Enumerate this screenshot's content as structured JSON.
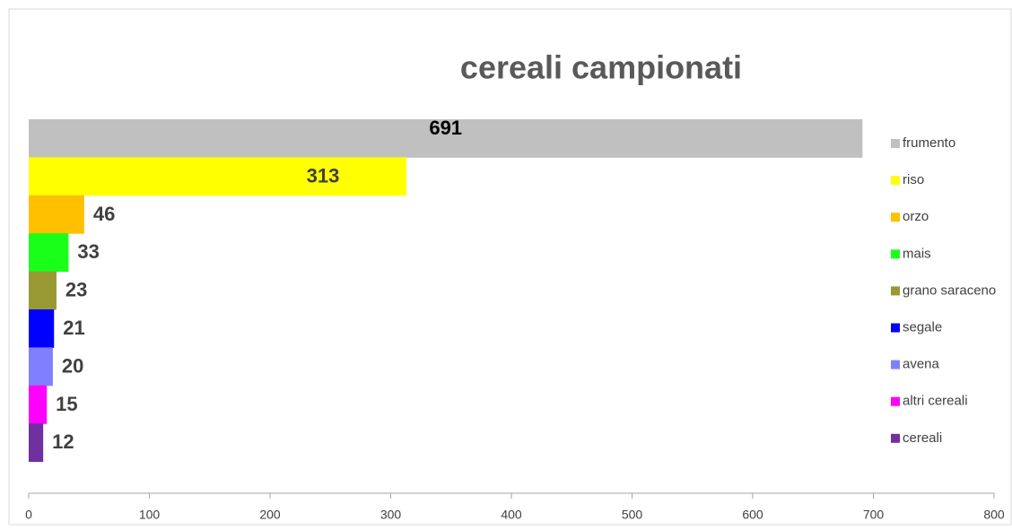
{
  "chart_data": {
    "type": "barh",
    "title": "cereali campionati",
    "series": [
      {
        "name": "frumento",
        "color": "#c0c0c0",
        "values": [
          691
        ]
      },
      {
        "name": "riso",
        "color": "#ffff00",
        "values": [
          313
        ]
      },
      {
        "name": "orzo",
        "color": "#ffc000",
        "values": [
          46
        ]
      },
      {
        "name": "mais",
        "color": "#1aff1a",
        "values": [
          33
        ]
      },
      {
        "name": "grano saraceno",
        "color": "#999933",
        "values": [
          23
        ]
      },
      {
        "name": "segale",
        "color": "#0000ff",
        "values": [
          21
        ]
      },
      {
        "name": "avena",
        "color": "#8080ff",
        "values": [
          20
        ]
      },
      {
        "name": "altri cereali",
        "color": "#ff00ff",
        "values": [
          15
        ]
      },
      {
        "name": "cereali",
        "color": "#7030a0",
        "values": [
          12
        ]
      }
    ],
    "xlim": [
      0,
      800
    ],
    "xticks": [
      0,
      100,
      200,
      300,
      400,
      500,
      600,
      700,
      800
    ],
    "legend": "right"
  }
}
